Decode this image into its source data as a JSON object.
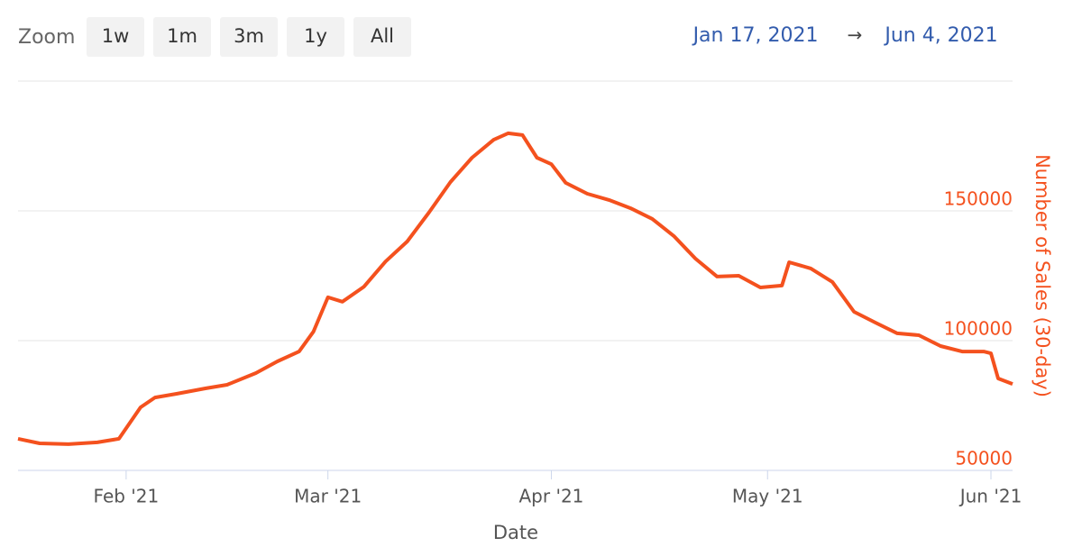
{
  "range_selector": {
    "label": "Zoom",
    "buttons": [
      "1w",
      "1m",
      "3m",
      "1y",
      "All"
    ],
    "from": "Jan 17, 2021",
    "arrow": "→",
    "to": "Jun 4, 2021"
  },
  "chart_data": {
    "type": "line",
    "x_label": "Date",
    "y_label": "Number of Sales (30-day)",
    "color": "#f4511e",
    "grid": true,
    "x": [
      "2021-01-17",
      "2021-01-20",
      "2021-01-24",
      "2021-01-28",
      "2021-01-31",
      "2021-02-03",
      "2021-02-05",
      "2021-02-08",
      "2021-02-12",
      "2021-02-15",
      "2021-02-19",
      "2021-02-22",
      "2021-02-25",
      "2021-02-27",
      "2021-03-01",
      "2021-03-03",
      "2021-03-06",
      "2021-03-09",
      "2021-03-12",
      "2021-03-15",
      "2021-03-18",
      "2021-03-21",
      "2021-03-24",
      "2021-03-26",
      "2021-03-28",
      "2021-03-30",
      "2021-04-01",
      "2021-04-03",
      "2021-04-06",
      "2021-04-09",
      "2021-04-12",
      "2021-04-15",
      "2021-04-18",
      "2021-04-21",
      "2021-04-24",
      "2021-04-27",
      "2021-04-30",
      "2021-05-03",
      "2021-05-04",
      "2021-05-07",
      "2021-05-10",
      "2021-05-13",
      "2021-05-16",
      "2021-05-19",
      "2021-05-22",
      "2021-05-25",
      "2021-05-28",
      "2021-05-31",
      "2021-06-01",
      "2021-06-02",
      "2021-06-04"
    ],
    "values": [
      62200,
      60400,
      60100,
      60800,
      62200,
      74300,
      78100,
      79500,
      81600,
      83000,
      87500,
      92000,
      95800,
      103500,
      116700,
      115000,
      120800,
      130500,
      138200,
      149300,
      161100,
      170500,
      177400,
      179900,
      179200,
      170500,
      168000,
      160800,
      156600,
      154200,
      151000,
      146900,
      140300,
      131600,
      124700,
      125000,
      120500,
      121200,
      130200,
      127800,
      122600,
      111100,
      106900,
      102800,
      102100,
      97900,
      95800,
      95800,
      95100,
      85400,
      83300
    ],
    "xlim": [
      "2021-01-17",
      "2021-06-04"
    ],
    "xticks": [
      {
        "value": "2021-02-01",
        "label": "Feb '21"
      },
      {
        "value": "2021-03-01",
        "label": "Mar '21"
      },
      {
        "value": "2021-04-01",
        "label": "Apr '21"
      },
      {
        "value": "2021-05-01",
        "label": "May '21"
      },
      {
        "value": "2021-06-01",
        "label": "Jun '21"
      }
    ],
    "ylim": [
      50000,
      200000
    ],
    "yticks": [
      50000,
      100000,
      150000
    ]
  }
}
